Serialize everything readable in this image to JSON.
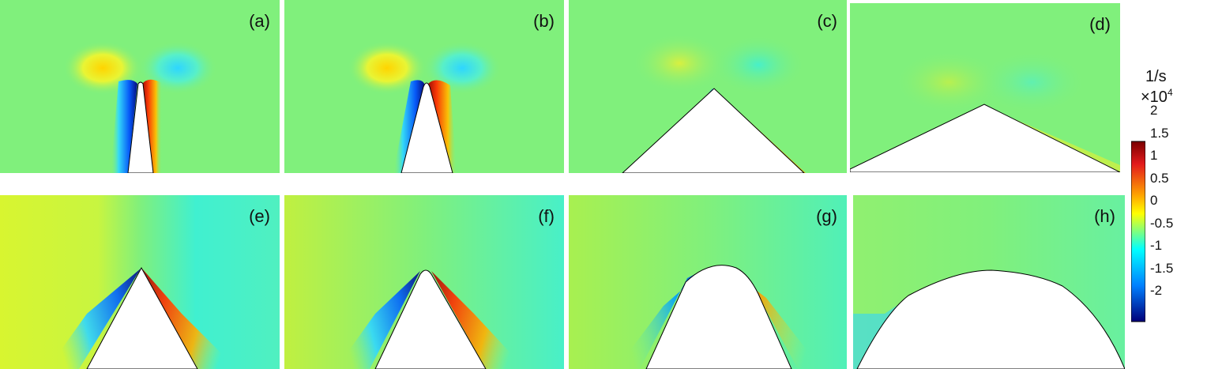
{
  "panels": [
    {
      "label": "(a)",
      "shape": "narrow-blade"
    },
    {
      "label": "(b)",
      "shape": "narrow-blade-rounded"
    },
    {
      "label": "(c)",
      "shape": "wide-wedge"
    },
    {
      "label": "(d)",
      "shape": "flat-wedge"
    },
    {
      "label": "(e)",
      "shape": "wedge"
    },
    {
      "label": "(f)",
      "shape": "wedge-rounded"
    },
    {
      "label": "(g)",
      "shape": "arch"
    },
    {
      "label": "(h)",
      "shape": "wide-arch"
    }
  ],
  "colorbar": {
    "unit": "1/s",
    "multiplier": "×10",
    "exponent": "4",
    "ticks": [
      "2",
      "1.5",
      "1",
      "0.5",
      "0",
      "-0.5",
      "-1",
      "-1.5",
      "-2"
    ],
    "colors": {
      "max": "#7a0000",
      "high": "#e31a1c",
      "mid_high": "#ffa500",
      "mid_pos": "#ffff00",
      "zero": "#7fff7f",
      "mid_neg": "#00ffff",
      "low": "#0080ff",
      "min": "#00007a"
    },
    "background": "#80f07c"
  }
}
